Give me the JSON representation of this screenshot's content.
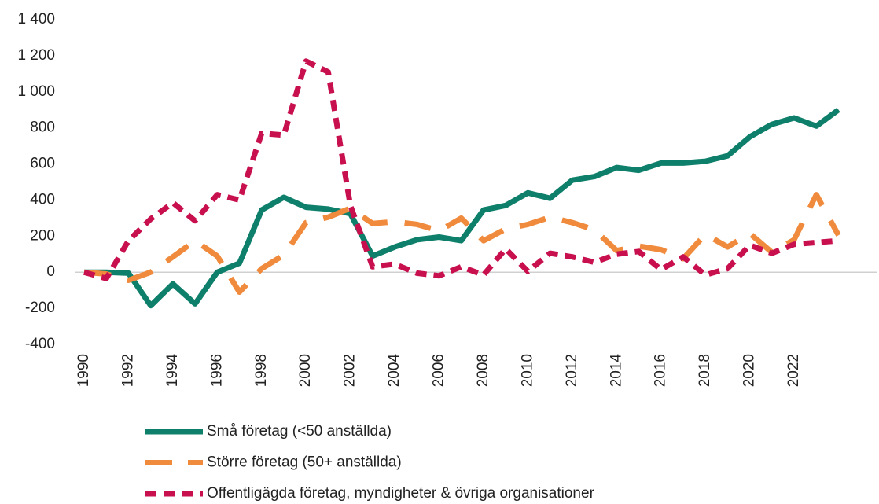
{
  "chart_data": {
    "type": "line",
    "categories": [
      "1990",
      null,
      "1992",
      null,
      "1994",
      null,
      "1996",
      null,
      "1998",
      null,
      "2000",
      null,
      "2002",
      null,
      "2004",
      null,
      "2006",
      null,
      "2008",
      null,
      "2010",
      null,
      "2012",
      null,
      "2014",
      null,
      "2016",
      null,
      "2018",
      null,
      "2020",
      null,
      "2022",
      null,
      null
    ],
    "series": [
      {
        "name": "Små företag (<50 anställda)",
        "color": "#0e7f6a",
        "dash": "solid",
        "values": [
          0,
          0,
          -5,
          -185,
          -65,
          -175,
          0,
          50,
          345,
          415,
          360,
          350,
          325,
          90,
          140,
          180,
          195,
          175,
          345,
          370,
          440,
          410,
          510,
          530,
          580,
          565,
          605,
          605,
          615,
          645,
          750,
          820,
          855,
          810,
          900
        ]
      },
      {
        "name": "Större företag (50+ anställda)",
        "color": "#f08a3c",
        "dash": "long",
        "values": [
          0,
          -10,
          -45,
          0,
          85,
          175,
          90,
          -110,
          20,
          95,
          275,
          305,
          355,
          270,
          280,
          265,
          230,
          300,
          175,
          240,
          265,
          305,
          275,
          235,
          120,
          145,
          125,
          75,
          210,
          140,
          215,
          110,
          180,
          430,
          205
        ]
      },
      {
        "name": "Offentligägda företag, myndigheter & övriga organisationer",
        "color": "#c8104f",
        "dash": "short",
        "values": [
          0,
          -35,
          175,
          295,
          385,
          285,
          430,
          400,
          770,
          760,
          1170,
          1110,
          370,
          30,
          45,
          -5,
          -20,
          30,
          -15,
          130,
          5,
          105,
          85,
          55,
          100,
          115,
          15,
          85,
          -15,
          20,
          150,
          105,
          155,
          165,
          175
        ]
      }
    ],
    "ylim": [
      -400,
      1400
    ],
    "yticks": [
      -400,
      -200,
      0,
      200,
      400,
      600,
      800,
      {
        "value": 1000,
        "label": "1 000"
      },
      {
        "value": 1200,
        "label": "1 200"
      },
      {
        "value": 1400,
        "label": "1 400"
      }
    ]
  }
}
